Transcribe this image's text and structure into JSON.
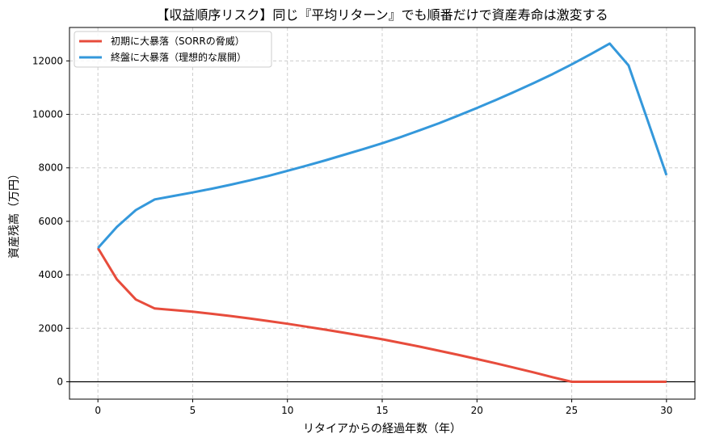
{
  "chart_data": {
    "type": "line",
    "title": "【収益順序リスク】同じ『平均リターン』でも順番だけで資産寿命は激変する",
    "xlabel": "リタイアからの経過年数（年）",
    "ylabel": "資産残高（万円）",
    "xlim": [
      -1.5,
      31.5
    ],
    "ylim": [
      -650,
      13250
    ],
    "xticks": [
      0,
      5,
      10,
      15,
      20,
      25,
      30
    ],
    "yticks": [
      0,
      2000,
      4000,
      6000,
      8000,
      10000,
      12000
    ],
    "grid": true,
    "zero_line": true,
    "legend_position": "top-left",
    "x": [
      0,
      1,
      2,
      3,
      4,
      5,
      6,
      7,
      8,
      9,
      10,
      11,
      12,
      13,
      14,
      15,
      16,
      17,
      18,
      19,
      20,
      21,
      22,
      23,
      24,
      25,
      26,
      27,
      28,
      29,
      30
    ],
    "series": [
      {
        "name": "初期に大暴落（SORRの脅威）",
        "color": "#e74c3c",
        "values": [
          5000,
          3830,
          3075,
          2740,
          2680,
          2620,
          2540,
          2460,
          2370,
          2270,
          2170,
          2060,
          1950,
          1830,
          1710,
          1590,
          1450,
          1310,
          1160,
          1010,
          850,
          690,
          520,
          350,
          170,
          0,
          0,
          0,
          0,
          0,
          0
        ]
      },
      {
        "name": "終盤に大暴落（理想的な展開）",
        "color": "#3498db",
        "values": [
          5000,
          5790,
          6420,
          6820,
          6950,
          7080,
          7220,
          7370,
          7530,
          7700,
          7890,
          8080,
          8280,
          8490,
          8700,
          8920,
          9160,
          9410,
          9670,
          9950,
          10240,
          10540,
          10850,
          11170,
          11510,
          11870,
          12250,
          12650,
          11830,
          9780,
          7730
        ]
      }
    ]
  }
}
